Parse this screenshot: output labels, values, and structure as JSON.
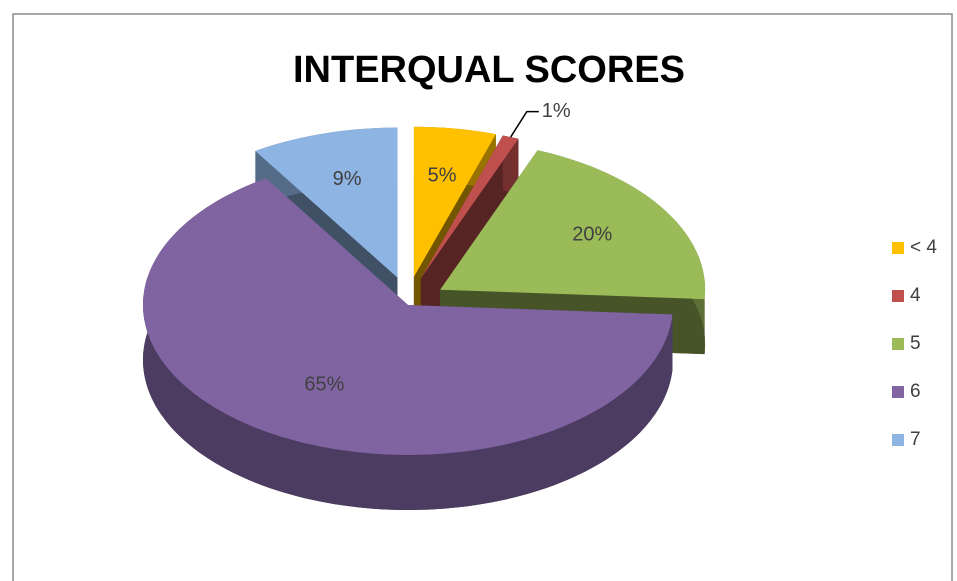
{
  "chart_data": {
    "type": "pie3d",
    "title": "INTERQUAL SCORES",
    "categories": [
      "< 4",
      "4",
      "5",
      "6",
      "7"
    ],
    "values": [
      5,
      1,
      20,
      65,
      9
    ],
    "value_labels": [
      "5%",
      "1%",
      "20%",
      "65%",
      "9%"
    ],
    "colors": [
      "#ffc000",
      "#c0504d",
      "#9bbb59",
      "#8064a2",
      "#8eb4e3"
    ],
    "legend": "right"
  }
}
